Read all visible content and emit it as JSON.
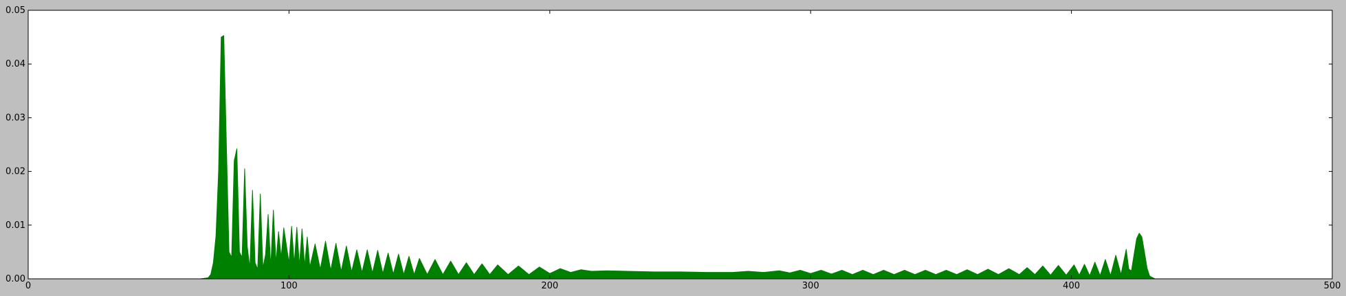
{
  "chart_data": {
    "type": "area",
    "title": "",
    "xlabel": "",
    "ylabel": "",
    "xlim": [
      0,
      500
    ],
    "ylim": [
      0,
      0.05
    ],
    "x_ticks": [
      0,
      100,
      200,
      300,
      400,
      500
    ],
    "x_tick_labels": [
      "0",
      "100",
      "200",
      "300",
      "400",
      "500"
    ],
    "y_ticks": [
      0.0,
      0.01,
      0.02,
      0.03,
      0.04,
      0.05
    ],
    "y_tick_labels": [
      "0.00",
      "0.01",
      "0.02",
      "0.03",
      "0.04",
      "0.05"
    ],
    "grid": false,
    "legend": "none",
    "colors": {
      "fill": "#008000",
      "figure_background": "#bfbfbf",
      "axes_background": "#ffffff"
    },
    "series": [
      {
        "x": [
          0,
          60,
          66,
          69,
          70,
          71,
          72,
          73,
          74,
          75,
          76,
          77,
          78,
          79,
          80,
          81,
          82,
          83,
          84,
          85,
          86,
          87,
          88,
          89,
          90,
          91,
          92,
          93,
          94,
          95,
          96,
          97,
          98,
          100,
          101,
          102,
          103,
          104,
          105,
          106,
          107,
          108,
          110,
          112,
          114,
          116,
          118,
          120,
          122,
          124,
          126,
          128,
          130,
          132,
          134,
          136,
          138,
          140,
          142,
          144,
          146,
          148,
          150,
          153,
          156,
          159,
          162,
          165,
          168,
          171,
          174,
          177,
          180,
          184,
          188,
          192,
          196,
          200,
          204,
          208,
          212,
          216,
          222,
          230,
          240,
          250,
          260,
          270,
          276,
          282,
          288,
          292,
          296,
          300,
          304,
          308,
          312,
          316,
          320,
          324,
          328,
          332,
          336,
          340,
          344,
          348,
          352,
          356,
          360,
          364,
          368,
          372,
          376,
          380,
          383,
          386,
          389,
          392,
          395,
          398,
          401,
          403,
          405,
          407,
          409,
          411,
          413,
          415,
          417,
          419,
          421,
          422,
          423,
          424,
          425,
          426,
          427,
          428,
          429,
          430,
          432,
          440,
          500
        ],
        "y": [
          0,
          0,
          0,
          0.0002,
          0.0008,
          0.003,
          0.008,
          0.02,
          0.045,
          0.0453,
          0.025,
          0.005,
          0.004,
          0.022,
          0.0242,
          0.005,
          0.004,
          0.0205,
          0.006,
          0.002,
          0.0165,
          0.003,
          0.0018,
          0.0158,
          0.002,
          0.0045,
          0.012,
          0.0022,
          0.0128,
          0.003,
          0.0088,
          0.004,
          0.0095,
          0.003,
          0.0098,
          0.0028,
          0.0096,
          0.0025,
          0.0093,
          0.0024,
          0.0078,
          0.0022,
          0.0065,
          0.0018,
          0.007,
          0.0016,
          0.0066,
          0.0014,
          0.0061,
          0.0013,
          0.0054,
          0.0012,
          0.0054,
          0.0011,
          0.0053,
          0.001,
          0.0048,
          0.0009,
          0.0046,
          0.0008,
          0.0042,
          0.0008,
          0.0038,
          0.0008,
          0.0036,
          0.0008,
          0.0033,
          0.0008,
          0.003,
          0.0008,
          0.0028,
          0.0008,
          0.0026,
          0.0008,
          0.0024,
          0.0008,
          0.0022,
          0.001,
          0.0019,
          0.0012,
          0.0017,
          0.0014,
          0.0015,
          0.0014,
          0.0013,
          0.0013,
          0.0012,
          0.0012,
          0.0014,
          0.0012,
          0.0015,
          0.0011,
          0.0016,
          0.001,
          0.0016,
          0.0009,
          0.0016,
          0.0008,
          0.0016,
          0.0008,
          0.0016,
          0.0008,
          0.0016,
          0.0008,
          0.0016,
          0.0008,
          0.0016,
          0.0008,
          0.0017,
          0.0008,
          0.0018,
          0.0008,
          0.0019,
          0.0008,
          0.0021,
          0.0008,
          0.0024,
          0.0007,
          0.0025,
          0.0007,
          0.0026,
          0.0007,
          0.0027,
          0.0006,
          0.0031,
          0.0006,
          0.0036,
          0.0006,
          0.0044,
          0.0008,
          0.0055,
          0.0018,
          0.0015,
          0.0045,
          0.0075,
          0.0085,
          0.0078,
          0.005,
          0.002,
          0.0005,
          0,
          0,
          0
        ]
      }
    ]
  }
}
